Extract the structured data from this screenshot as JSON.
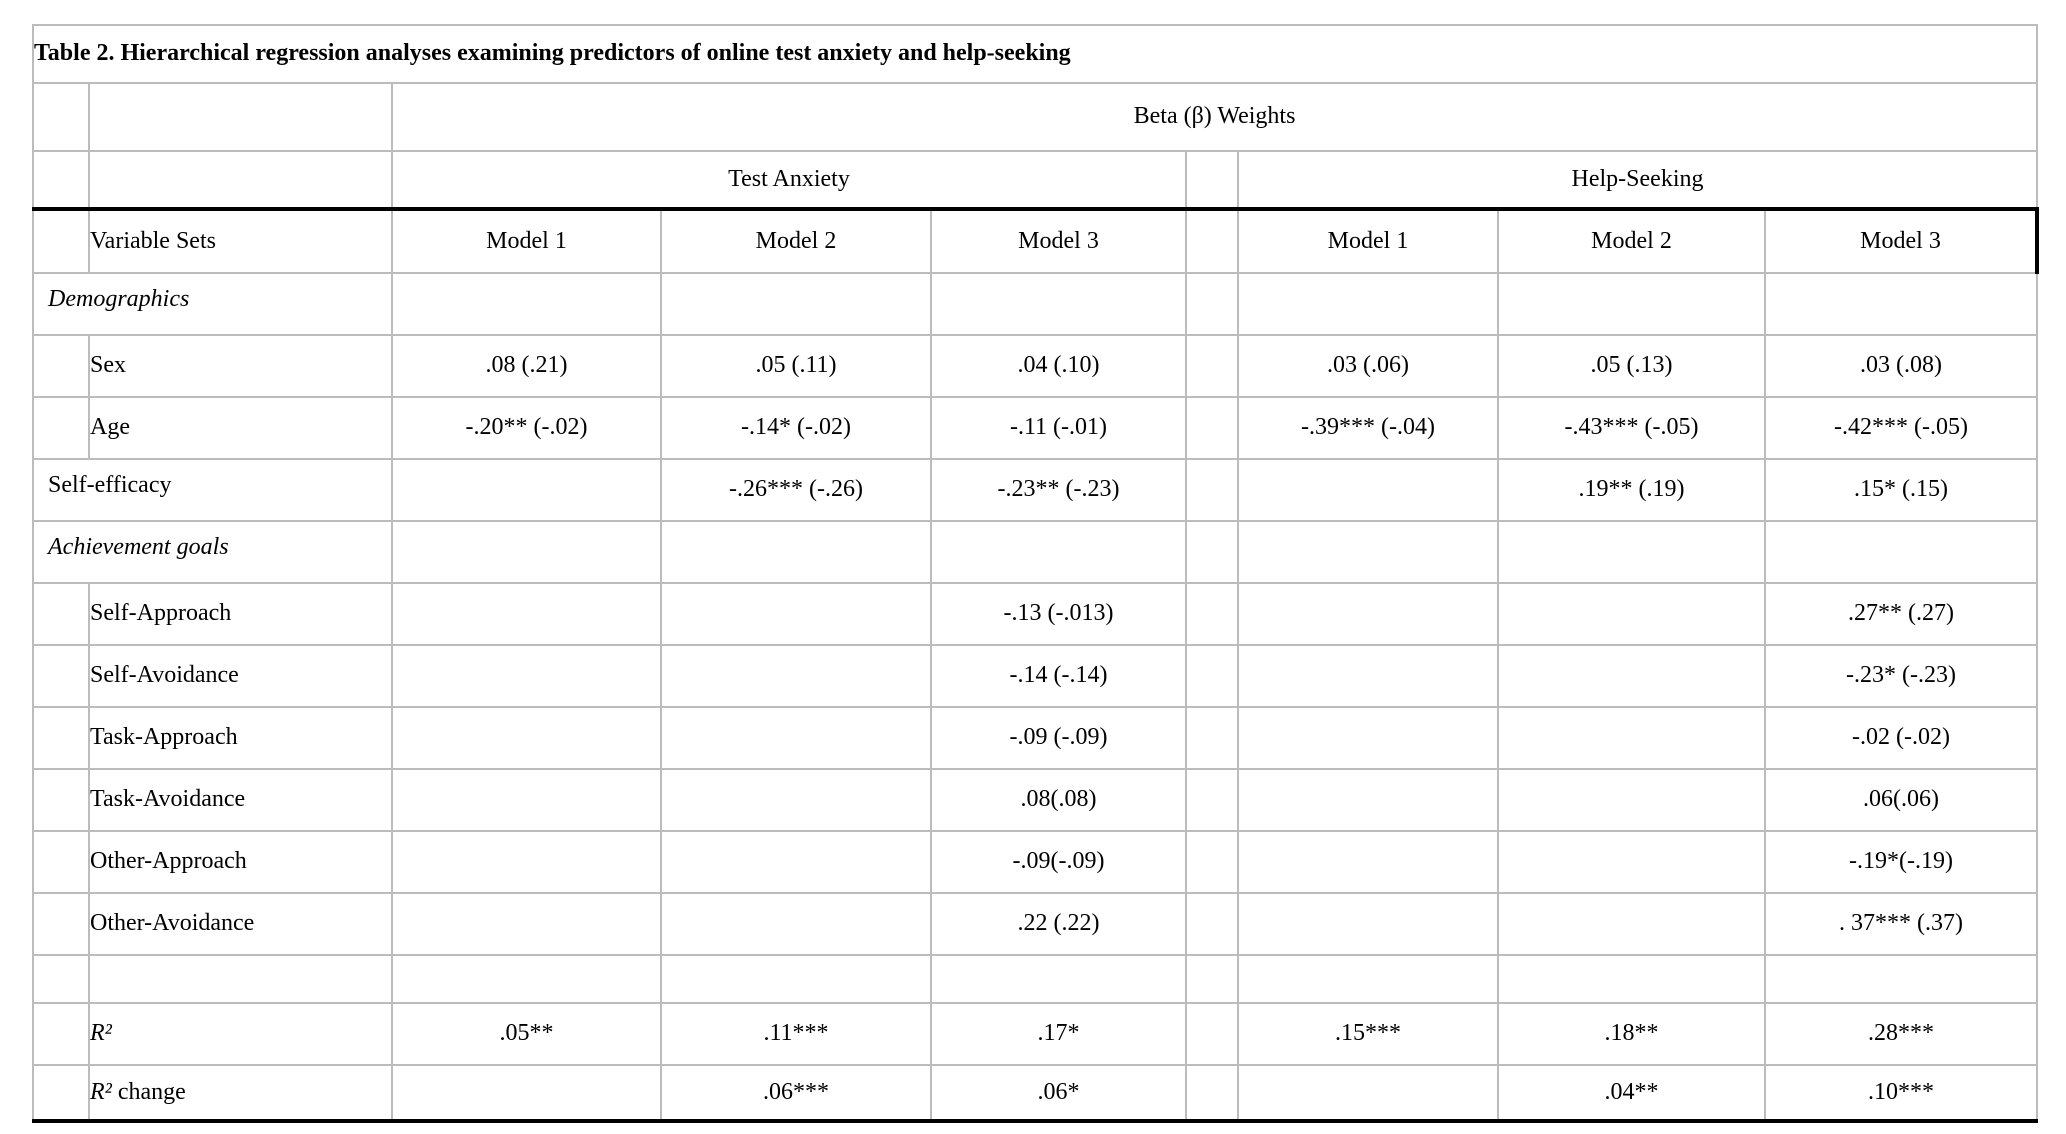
{
  "table": {
    "title": "Table 2. Hierarchical regression analyses examining predictors of online test anxiety and help-seeking",
    "header": {
      "beta_weights": "Beta (β) Weights",
      "groups": [
        "Test Anxiety",
        "Help-Seeking"
      ],
      "variable_sets": "Variable Sets",
      "models": [
        "Model 1",
        "Model 2",
        "Model 3"
      ]
    },
    "columns": [
      "Test Anxiety Model 1",
      "Test Anxiety Model 2",
      "Test Anxiety Model 3",
      "Help-Seeking Model 1",
      "Help-Seeking Model 2",
      "Help-Seeking Model 3"
    ],
    "rows": [
      {
        "label": "Demographics",
        "italic": true,
        "merged": true,
        "kind": "section",
        "values": [
          "",
          "",
          "",
          "",
          "",
          ""
        ]
      },
      {
        "label": "Sex",
        "kind": "data",
        "values": [
          ".08 (.21)",
          ".05 (.11)",
          ".04 (.10)",
          ".03 (.06)",
          ".05 (.13)",
          ".03 (.08)"
        ]
      },
      {
        "label": "Age",
        "kind": "data",
        "values": [
          "-.20** (-.02)",
          "-.14* (-.02)",
          "-.11 (-.01)",
          "-.39*** (-.04)",
          "-.43*** (-.05)",
          "-.42*** (-.05)"
        ]
      },
      {
        "label": "Self-efficacy",
        "merged": true,
        "kind": "data",
        "values": [
          "",
          "-.26*** (-.26)",
          "-.23** (-.23)",
          "",
          ".19** (.19)",
          ".15* (.15)"
        ]
      },
      {
        "label": "Achievement goals",
        "italic": true,
        "merged": true,
        "kind": "section",
        "values": [
          "",
          "",
          "",
          "",
          "",
          ""
        ]
      },
      {
        "label": "Self-Approach",
        "kind": "data",
        "values": [
          "",
          "",
          "-.13 (-.013)",
          "",
          "",
          ".27** (.27)"
        ]
      },
      {
        "label": "Self-Avoidance",
        "kind": "data",
        "values": [
          "",
          "",
          "-.14 (-.14)",
          "",
          "",
          "-.23* (-.23)"
        ]
      },
      {
        "label": "Task-Approach",
        "kind": "data",
        "values": [
          "",
          "",
          "-.09 (-.09)",
          "",
          "",
          "-.02 (-.02)"
        ]
      },
      {
        "label": "Task-Avoidance",
        "kind": "data",
        "values": [
          "",
          "",
          ".08(.08)",
          "",
          "",
          ".06(.06)"
        ]
      },
      {
        "label": "Other-Approach",
        "kind": "data",
        "values": [
          "",
          "",
          "-.09(-.09)",
          "",
          "",
          "-.19*(-.19)"
        ]
      },
      {
        "label": "Other-Avoidance",
        "kind": "data",
        "values": [
          "",
          "",
          ".22 (.22)",
          "",
          "",
          ". 37*** (.37)"
        ]
      },
      {
        "label": "",
        "kind": "empty",
        "values": [
          "",
          "",
          "",
          "",
          "",
          ""
        ]
      },
      {
        "label": "R²",
        "suffix": "",
        "italic": true,
        "kind": "data",
        "values": [
          ".05**",
          ".11***",
          ".17*",
          ".15***",
          ".18**",
          ".28***"
        ]
      },
      {
        "label": "R²",
        "suffix": " change",
        "italic": true,
        "kind": "data",
        "last": true,
        "values": [
          "",
          ".06***",
          ".06*",
          "",
          ".04**",
          ".10***"
        ]
      }
    ],
    "colors": {
      "grid": "#bcbcbc",
      "heavy_rule": "#000000",
      "background": "#ffffff",
      "text": "#000000"
    }
  }
}
